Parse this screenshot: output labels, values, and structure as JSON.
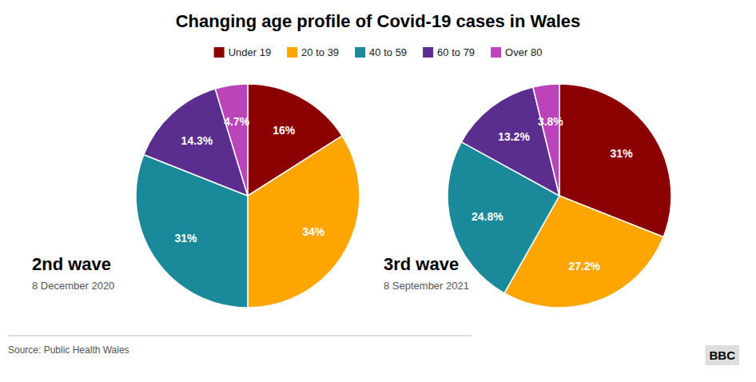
{
  "chart_data": [
    {
      "type": "pie",
      "title": "Changing age profile of Covid-19 cases in Wales",
      "subtitle": "2nd wave",
      "annotations": [
        "8 December 2020",
        "Source: Public Health Wales",
        "BBC"
      ],
      "categories": [
        "Under 19",
        "20 to 39",
        "40 to 59",
        "60 to 79",
        "Over 80"
      ],
      "values": [
        16,
        34,
        31,
        14.3,
        4.7
      ],
      "value_labels": [
        "16%",
        "34%",
        "31%",
        "14.3%",
        "4.7%"
      ],
      "colors": [
        "#8B0000",
        "#FFA500",
        "#1A8A9A",
        "#5B2D8E",
        "#BB44BB"
      ],
      "data_labels": true,
      "legend": "top"
    },
    {
      "type": "pie",
      "subtitle": "3rd wave",
      "annotations": [
        "8 September 2021"
      ],
      "categories": [
        "Under 19",
        "20 to 39",
        "40 to 59",
        "60 to 79",
        "Over 80"
      ],
      "values": [
        31,
        27.2,
        24.8,
        13.2,
        3.8
      ],
      "value_labels": [
        "31%",
        "27.2%",
        "24.8%",
        "13.2%",
        "3.8%"
      ],
      "colors": [
        "#8B0000",
        "#FFA500",
        "#1A8A9A",
        "#5B2D8E",
        "#BB44BB"
      ],
      "data_labels": true
    }
  ]
}
